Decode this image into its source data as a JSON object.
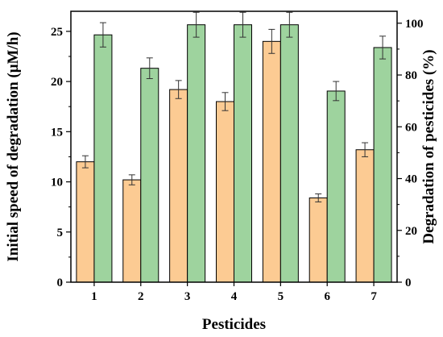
{
  "chart_data": {
    "type": "bar",
    "xlabel": "Pesticides",
    "ylabel_left": "Initial speed of degradation (μM/h)",
    "ylabel_right": "Degradation of pesticides (%)",
    "categories": [
      "1",
      "2",
      "3",
      "4",
      "5",
      "6",
      "7"
    ],
    "ylim_left": [
      0,
      27
    ],
    "ylim_right": [
      0,
      104.6
    ],
    "yticks_left": [
      0,
      5,
      10,
      15,
      20,
      25
    ],
    "yticks_right": [
      0,
      20,
      40,
      60,
      80,
      100
    ],
    "series": [
      {
        "axis": "left",
        "color": "#FCCB93",
        "values": [
          12.0,
          10.2,
          19.2,
          18.0,
          24.0,
          8.4,
          13.2
        ],
        "errors": [
          0.6,
          0.5,
          0.9,
          0.9,
          1.2,
          0.4,
          0.7
        ]
      },
      {
        "axis": "right",
        "color": "#9ED39E",
        "values": [
          95.5,
          82.6,
          99.4,
          99.4,
          99.4,
          73.8,
          90.6
        ],
        "errors": [
          4.7,
          4.0,
          4.8,
          4.8,
          4.8,
          3.7,
          4.4
        ]
      }
    ],
    "grid": false,
    "legend": "none"
  }
}
